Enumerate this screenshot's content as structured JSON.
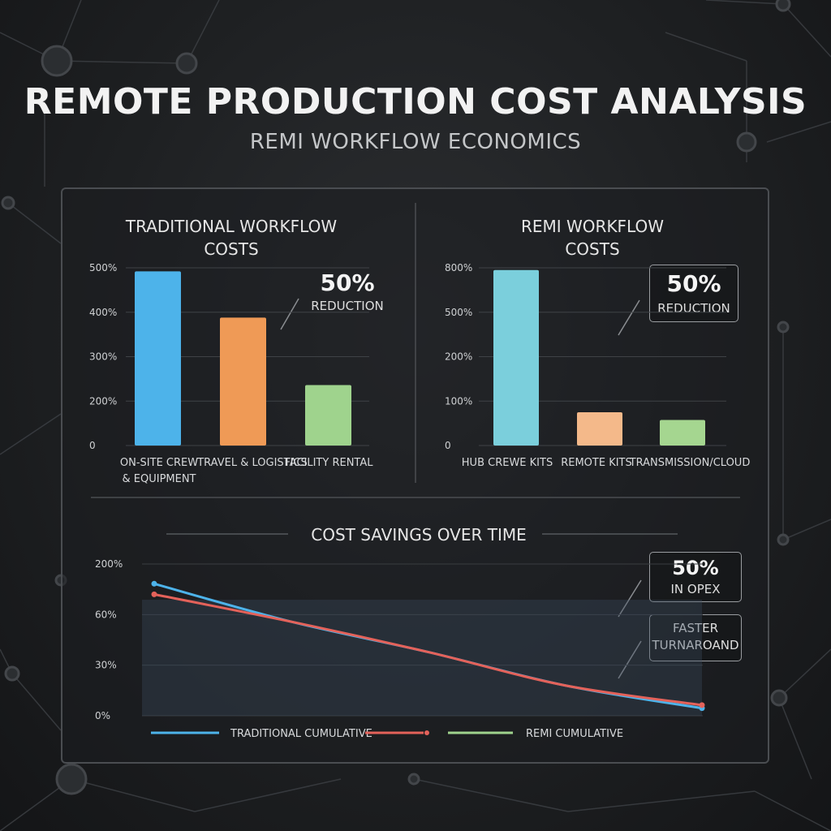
{
  "header": {
    "title": "REMOTE PRODUCTION COST ANALYSIS",
    "subtitle": "REMI WORKFLOW ECONOMICS"
  },
  "colors": {
    "blue": "#4db3ea",
    "orange": "#ef9a56",
    "green": "#9fd38d",
    "teal": "#7bcfdc",
    "peach": "#f4b98a",
    "lightgreen": "#a5d690",
    "red": "#e4625a"
  },
  "chart_data": [
    {
      "type": "bar",
      "title": "TRADITIONAL WORKFLOW\nCOSTS",
      "yticks": [
        "0",
        "200%",
        "300%",
        "400%",
        "500%"
      ],
      "categories": [
        "ON-SITE CREW\n& EQUIPMENT",
        "TRAVEL & LOGISTICS",
        "FACILITY RENTAL"
      ],
      "values": [
        490,
        360,
        170
      ],
      "ylim": [
        0,
        500
      ],
      "grid": true,
      "colors": [
        "#4db3ea",
        "#ef9a56",
        "#9fd38d"
      ],
      "callout": {
        "big": "50%",
        "small": "REDUCTION"
      }
    },
    {
      "type": "bar",
      "title": "REMI WORKFLOW\nCOSTS",
      "yticks": [
        "0",
        "100%",
        "200%",
        "500%",
        "800%"
      ],
      "categories": [
        "HUB CREWE KITS",
        "REMOTE KITS",
        "TRANSMISSION/CLOUD"
      ],
      "values": [
        790,
        150,
        115
      ],
      "ylim": [
        0,
        800
      ],
      "grid": true,
      "colors": [
        "#7bcfdc",
        "#f4b98a",
        "#a5d690"
      ],
      "callout": {
        "big": "50%",
        "small": "REDUCTION"
      }
    },
    {
      "type": "line",
      "title": "COST SAVINGS OVER TIME",
      "yticks": [
        "0%",
        "30%",
        "60%",
        "200%"
      ],
      "grid": true,
      "series": [
        {
          "name": "TRADITIONAL CUMULATIVE",
          "color": "#4db3ea",
          "values": [
            0.87,
            0.62,
            0.42,
            0.2,
            0.05
          ]
        },
        {
          "name": "",
          "color": "#e4625a",
          "values": [
            0.8,
            0.62,
            0.42,
            0.2,
            0.07
          ]
        },
        {
          "name": "REMI CUMULATIVE",
          "color": "#9fd38d",
          "values": []
        }
      ],
      "callouts": [
        {
          "big": "50%",
          "small": "IN OPEX"
        },
        {
          "big": "",
          "small": "FASTER\nTURNAROAND"
        }
      ]
    }
  ]
}
